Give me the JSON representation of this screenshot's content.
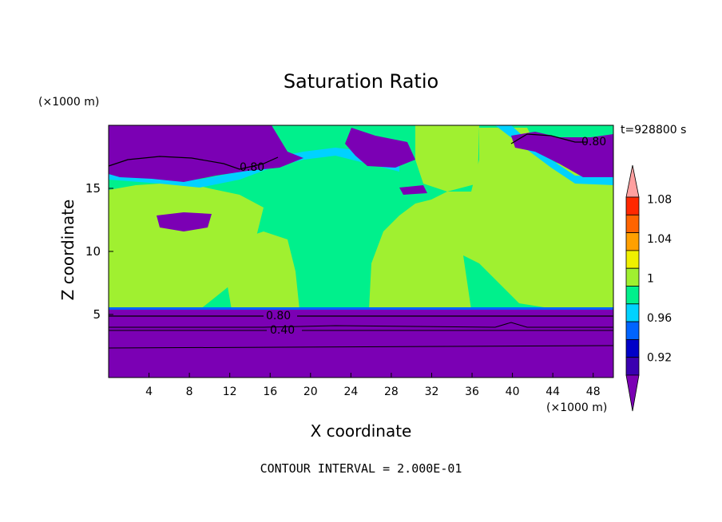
{
  "chart_data": {
    "type": "heatmap",
    "title": "Saturation Ratio",
    "xlabel": "X coordinate",
    "ylabel": "Z coordinate",
    "x_unit": "(×1000 m)",
    "y_unit": "(×1000 m)",
    "time_label": "t=928800 s",
    "footer": "CONTOUR INTERVAL = 2.000E-01",
    "xlim": [
      0,
      50
    ],
    "ylim": [
      0,
      20
    ],
    "x_ticks": [
      "4",
      "8",
      "12",
      "16",
      "20",
      "24",
      "28",
      "32",
      "36",
      "40",
      "44",
      "48"
    ],
    "y_ticks": [
      "5",
      "10",
      "15"
    ],
    "contour_labels": [
      "0.80",
      "0.80",
      "0.80",
      "0.40"
    ],
    "colorbar": {
      "labels": [
        "0.92",
        "0.96",
        "1",
        "1.04",
        "1.08"
      ],
      "levels": [
        0.92,
        0.94,
        0.96,
        0.98,
        1.0,
        1.02,
        1.04,
        1.06,
        1.08,
        1.1
      ],
      "colors": [
        "#7b00b4",
        "#3a00b0",
        "#0000c8",
        "#0064ff",
        "#00d2ff",
        "#00f08c",
        "#a0f030",
        "#f0f000",
        "#ffa000",
        "#ff6400",
        "#ff2800",
        "#ffa0a0"
      ]
    }
  }
}
